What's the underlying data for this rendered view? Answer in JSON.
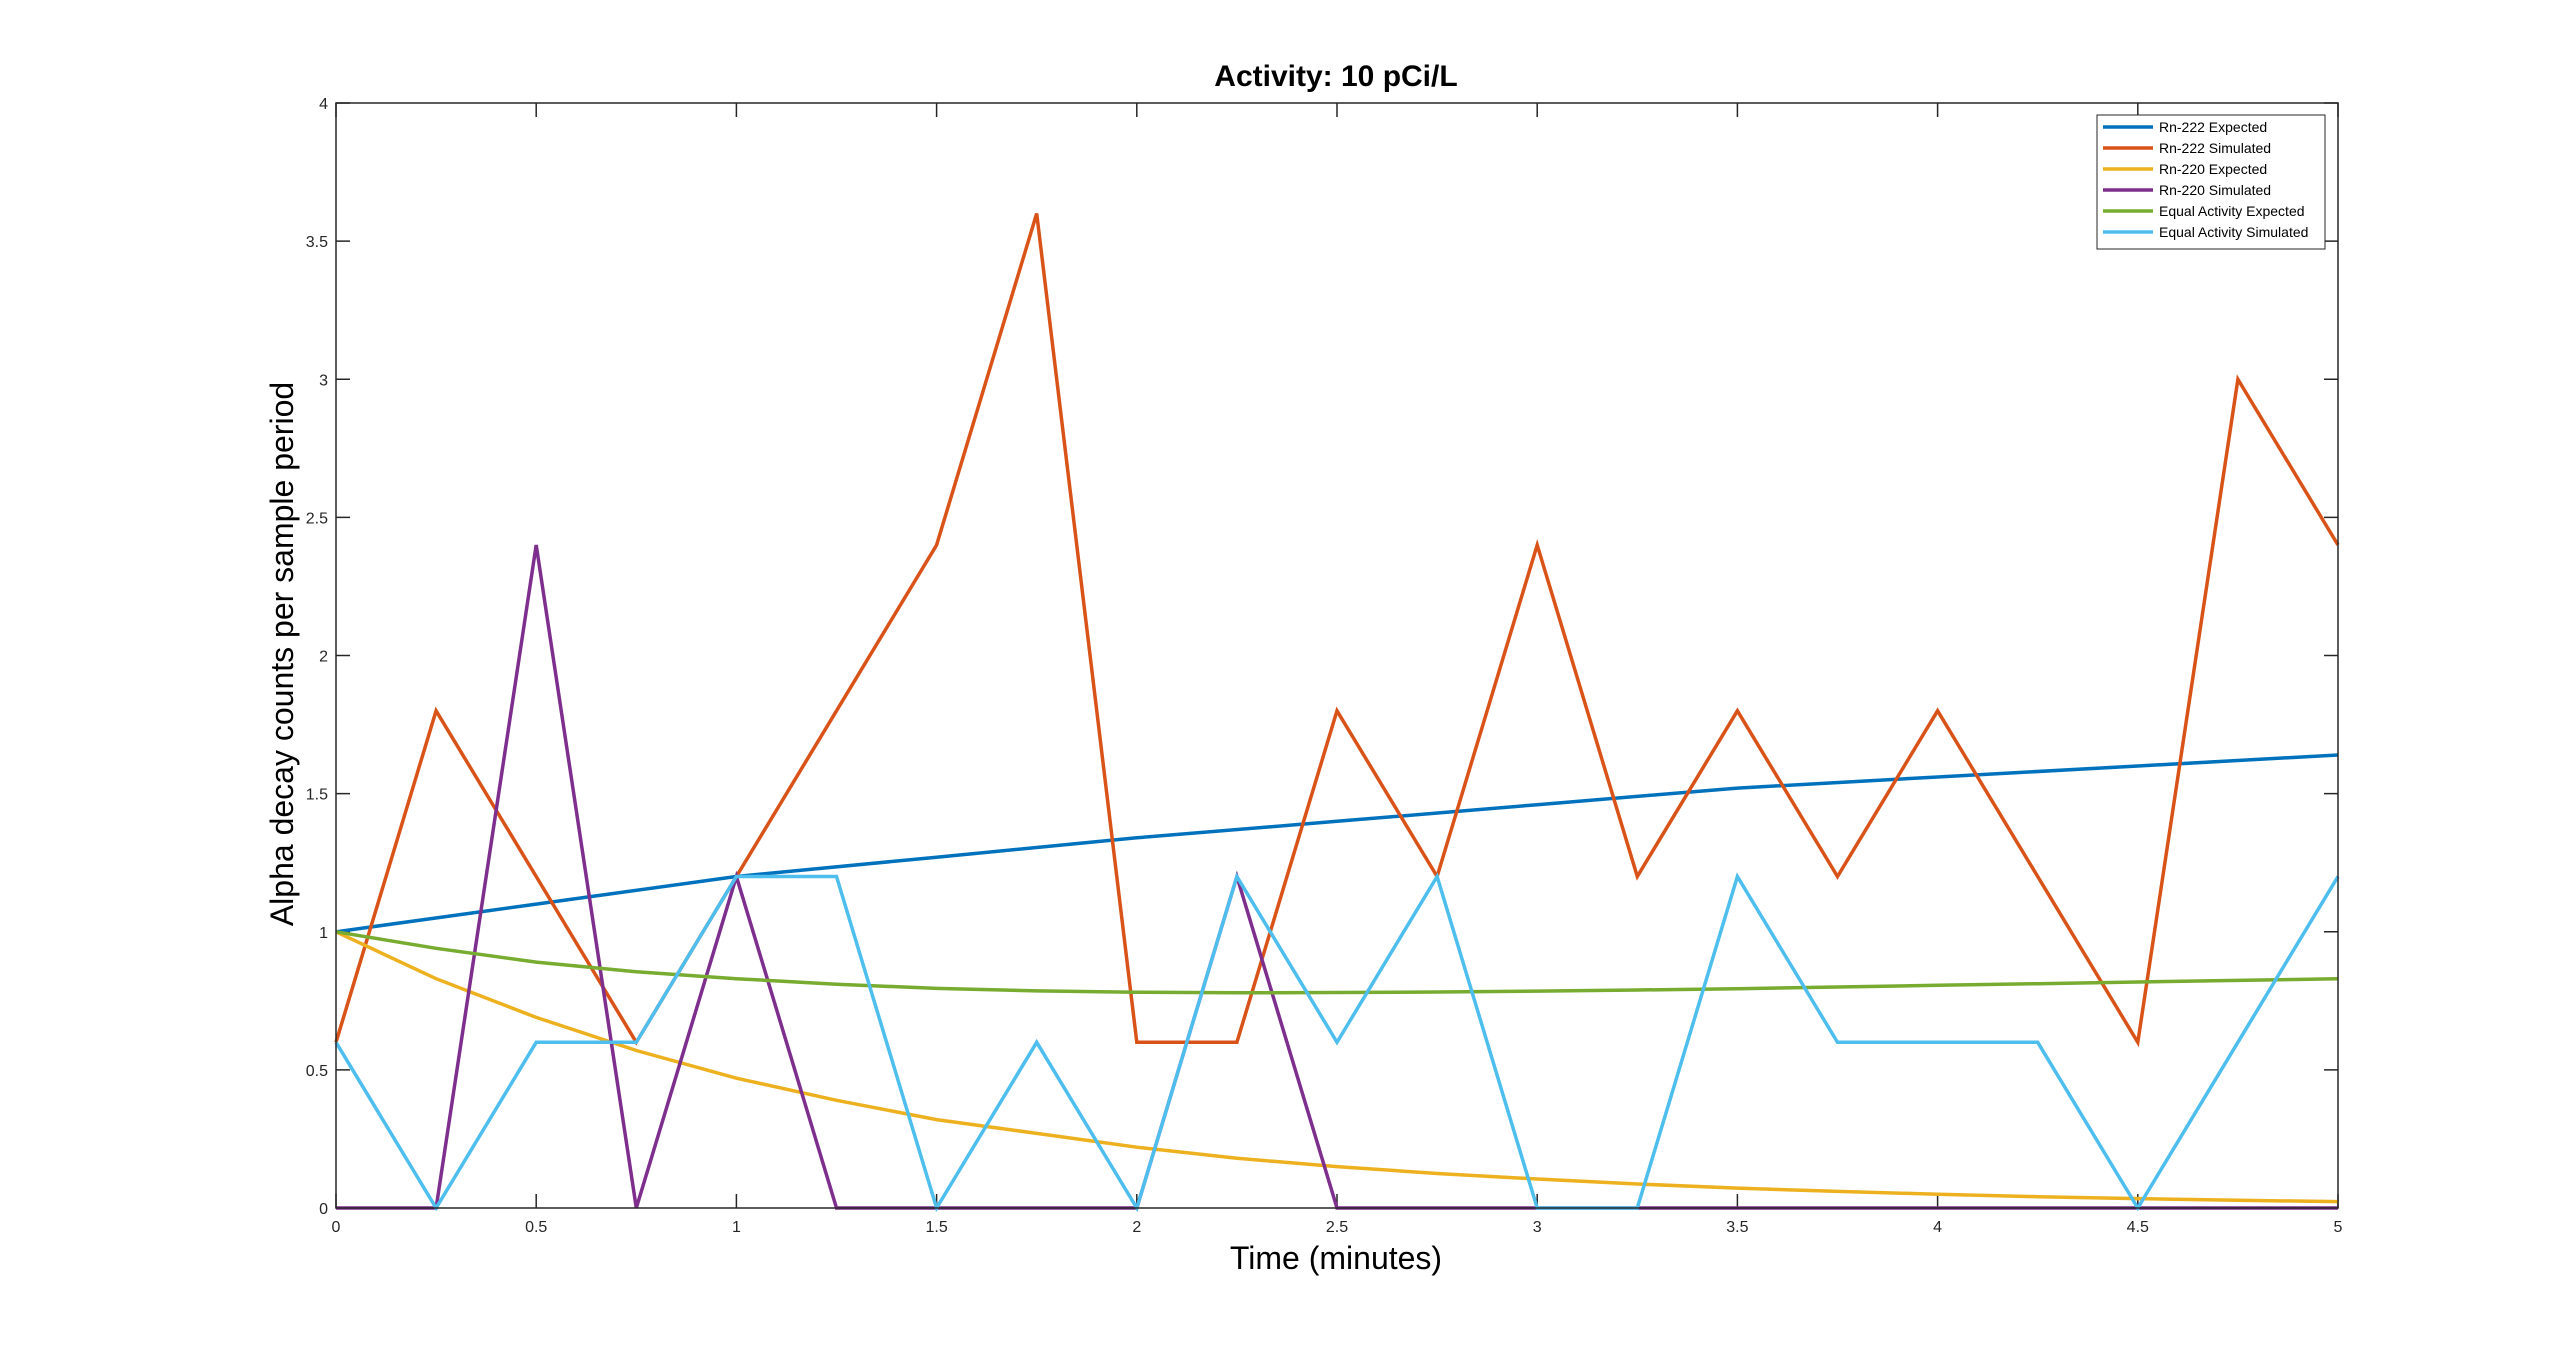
{
  "chart_data": {
    "type": "line",
    "title": "Activity: 10 pCi/L",
    "xlabel": "Time (minutes)",
    "ylabel": "Alpha decay counts per sample period",
    "xlim": [
      0,
      5
    ],
    "ylim": [
      0,
      4
    ],
    "xticks": [
      0,
      0.5,
      1,
      1.5,
      2,
      2.5,
      3,
      3.5,
      4,
      4.5,
      5
    ],
    "xtick_labels": [
      "0",
      "0.5",
      "1",
      "1.5",
      "2",
      "2.5",
      "3",
      "3.5",
      "4",
      "4.5",
      "5"
    ],
    "yticks": [
      0,
      0.5,
      1,
      1.5,
      2,
      2.5,
      3,
      3.5,
      4
    ],
    "ytick_labels": [
      "0",
      "0.5",
      "1",
      "1.5",
      "2",
      "2.5",
      "3",
      "3.5",
      "4"
    ],
    "grid": false,
    "legend_position": "top-right",
    "series": [
      {
        "name": "Rn-222 Expected",
        "color": "#0072BD",
        "x": [
          0,
          0.5,
          1,
          1.5,
          2,
          2.5,
          3,
          3.5,
          4,
          4.5,
          5
        ],
        "values": [
          1.0,
          1.1,
          1.2,
          1.27,
          1.34,
          1.4,
          1.46,
          1.52,
          1.56,
          1.6,
          1.64
        ]
      },
      {
        "name": "Rn-222 Simulated",
        "color": "#D95319",
        "x": [
          0,
          0.25,
          0.5,
          0.75,
          1,
          1.25,
          1.5,
          1.75,
          2,
          2.25,
          2.5,
          2.75,
          3,
          3.25,
          3.5,
          3.75,
          4,
          4.25,
          4.5,
          4.75,
          5
        ],
        "values": [
          0.6,
          1.8,
          1.2,
          0.6,
          1.2,
          1.8,
          2.4,
          3.6,
          0.6,
          0.6,
          1.8,
          1.2,
          2.4,
          1.2,
          1.8,
          1.2,
          1.8,
          1.2,
          0.6,
          3.0,
          2.4
        ]
      },
      {
        "name": "Rn-220 Expected",
        "color": "#EDB120",
        "x": [
          0,
          0.25,
          0.5,
          0.75,
          1,
          1.25,
          1.5,
          1.75,
          2,
          2.25,
          2.5,
          2.75,
          3,
          3.25,
          3.5,
          3.75,
          4,
          4.25,
          4.5,
          4.75,
          5
        ],
        "values": [
          1.0,
          0.83,
          0.69,
          0.57,
          0.47,
          0.39,
          0.32,
          0.27,
          0.22,
          0.18,
          0.15,
          0.125,
          0.105,
          0.087,
          0.072,
          0.06,
          0.05,
          0.041,
          0.034,
          0.028,
          0.023
        ]
      },
      {
        "name": "Rn-220 Simulated",
        "color": "#7E2F8E",
        "x": [
          0,
          0.25,
          0.5,
          0.75,
          1,
          1.25,
          1.5,
          1.75,
          2,
          2.25,
          2.5,
          2.75,
          3,
          3.25,
          3.5,
          3.75,
          4,
          4.25,
          4.5,
          4.75,
          5
        ],
        "values": [
          0,
          0,
          2.4,
          0,
          1.2,
          0,
          0,
          0,
          0,
          1.2,
          0,
          0,
          0,
          0,
          0,
          0,
          0,
          0,
          0,
          0,
          0
        ]
      },
      {
        "name": "Equal Activity Expected",
        "color": "#77AC30",
        "x": [
          0,
          0.25,
          0.5,
          0.75,
          1,
          1.25,
          1.5,
          1.75,
          2,
          2.25,
          2.5,
          2.75,
          3,
          3.25,
          3.5,
          3.75,
          4,
          4.25,
          4.5,
          4.75,
          5
        ],
        "values": [
          1.0,
          0.94,
          0.89,
          0.855,
          0.83,
          0.81,
          0.795,
          0.786,
          0.781,
          0.779,
          0.78,
          0.782,
          0.785,
          0.789,
          0.794,
          0.8,
          0.806,
          0.812,
          0.818,
          0.824,
          0.83
        ]
      },
      {
        "name": "Equal Activity Simulated",
        "color": "#4DBEEE",
        "x": [
          0,
          0.25,
          0.5,
          0.75,
          1,
          1.25,
          1.5,
          1.75,
          2,
          2.25,
          2.5,
          2.75,
          3,
          3.25,
          3.5,
          3.75,
          4,
          4.25,
          4.5,
          4.75,
          5
        ],
        "values": [
          0.6,
          0,
          0.6,
          0.6,
          1.2,
          1.2,
          0,
          0.6,
          0,
          1.2,
          0.6,
          1.2,
          0,
          0,
          1.2,
          0.6,
          0.6,
          0.6,
          0,
          0.6,
          1.2
        ]
      }
    ]
  }
}
